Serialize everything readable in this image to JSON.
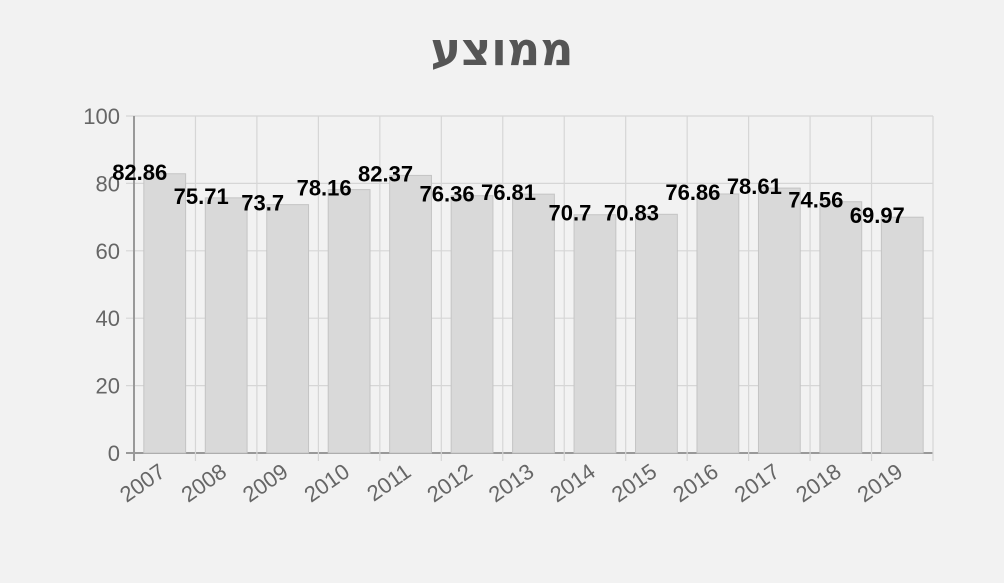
{
  "chart_data": {
    "type": "bar",
    "title": "ממוצע",
    "categories": [
      "2007",
      "2008",
      "2009",
      "2010",
      "2011",
      "2012",
      "2013",
      "2014",
      "2015",
      "2016",
      "2017",
      "2018",
      "2019"
    ],
    "values": [
      82.86,
      75.71,
      73.7,
      78.16,
      82.37,
      76.36,
      76.81,
      70.7,
      70.83,
      76.86,
      78.61,
      74.56,
      69.97
    ],
    "value_labels": [
      "82.86",
      "75.71",
      "73.7",
      "78.16",
      "82.37",
      "76.36",
      "76.81",
      "70.7",
      "70.83",
      "76.86",
      "78.61",
      "74.56",
      "69.97"
    ],
    "yticks": [
      "0",
      "20",
      "40",
      "60",
      "80",
      "100"
    ],
    "ylim": [
      0,
      100
    ],
    "xlabel": "",
    "ylabel": "",
    "grid": true,
    "colors": {
      "bar_fill": "#d9d9d9",
      "bar_stroke": "#c4c4c4",
      "grid": "#d6d6d6",
      "axis": "#999999"
    }
  }
}
